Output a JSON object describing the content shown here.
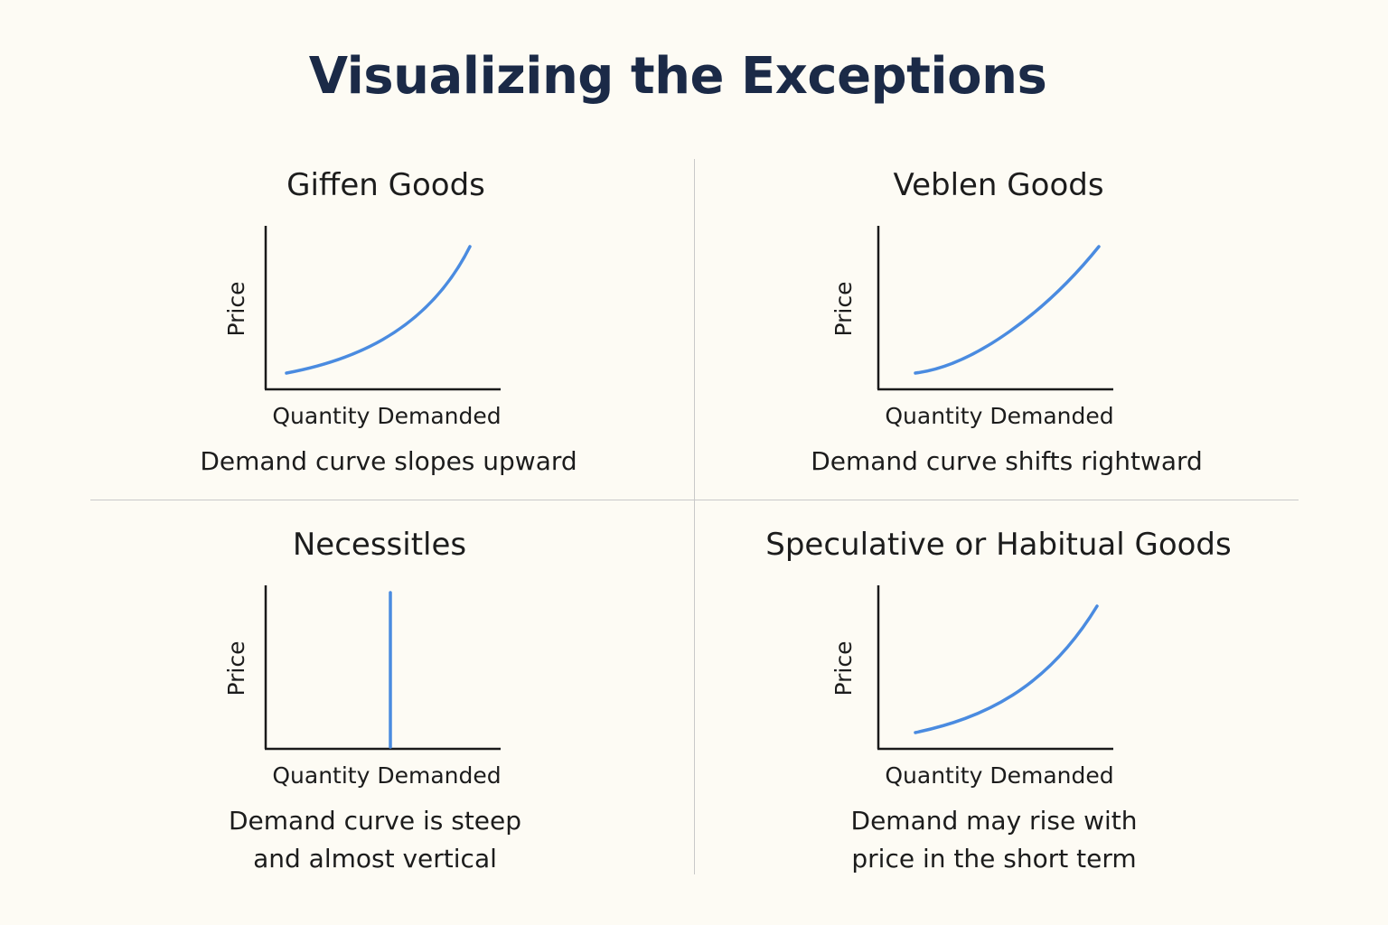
{
  "title": "Visualizing the Exceptions",
  "colors": {
    "background": "#fdfbf4",
    "title": "#1b2a47",
    "curve": "#4a8be0",
    "axis": "#1a1a1a",
    "divider": "#c9c9c9"
  },
  "panels": [
    {
      "title": "Giffen Goods",
      "caption": "Demand curve slopes upward",
      "ylabel": "Price",
      "xlabel": "Quantity Demanded",
      "curve_shape": "convex-upward"
    },
    {
      "title": "Veblen Goods",
      "caption": "Demand curve shifts rightward",
      "ylabel": "Price",
      "xlabel": "Quantity Demanded",
      "curve_shape": "convex-upward"
    },
    {
      "title": "Necessitles",
      "caption": "Demand curve is steep\nand almost vertical",
      "ylabel": "Price",
      "xlabel": "Quantity Demanded",
      "curve_shape": "vertical"
    },
    {
      "title": "Speculative or Habitual Goods",
      "caption": "Demand may rise with\n price in the short term",
      "ylabel": "Price",
      "xlabel": "Quantity Demanded",
      "curve_shape": "convex-upward"
    }
  ]
}
